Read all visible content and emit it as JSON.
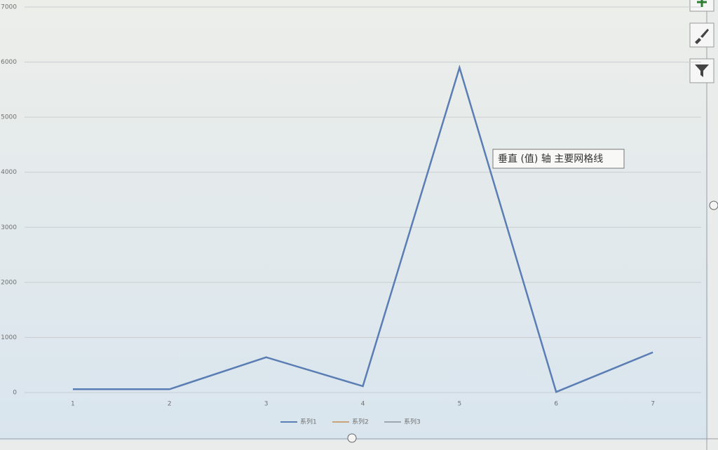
{
  "chart_data": {
    "type": "line",
    "categories": [
      "1",
      "2",
      "3",
      "4",
      "5",
      "6",
      "7"
    ],
    "series": [
      {
        "name": "系列1",
        "color": "#5a7db3",
        "values": [
          60,
          60,
          640,
          115,
          5900,
          10,
          730
        ]
      },
      {
        "name": "系列2",
        "color": "#c9a27a",
        "values": [
          null,
          null,
          null,
          null,
          null,
          null,
          null
        ]
      },
      {
        "name": "系列3",
        "color": "#a0a6ad",
        "values": [
          null,
          null,
          null,
          null,
          null,
          null,
          null
        ]
      }
    ],
    "ylim": [
      0,
      7000
    ],
    "yticks": [
      0,
      1000,
      2000,
      3000,
      4000,
      5000,
      6000,
      7000
    ],
    "grid": true,
    "legend": "bottom",
    "tooltip": "垂直 (值) 轴 主要网格线"
  }
}
